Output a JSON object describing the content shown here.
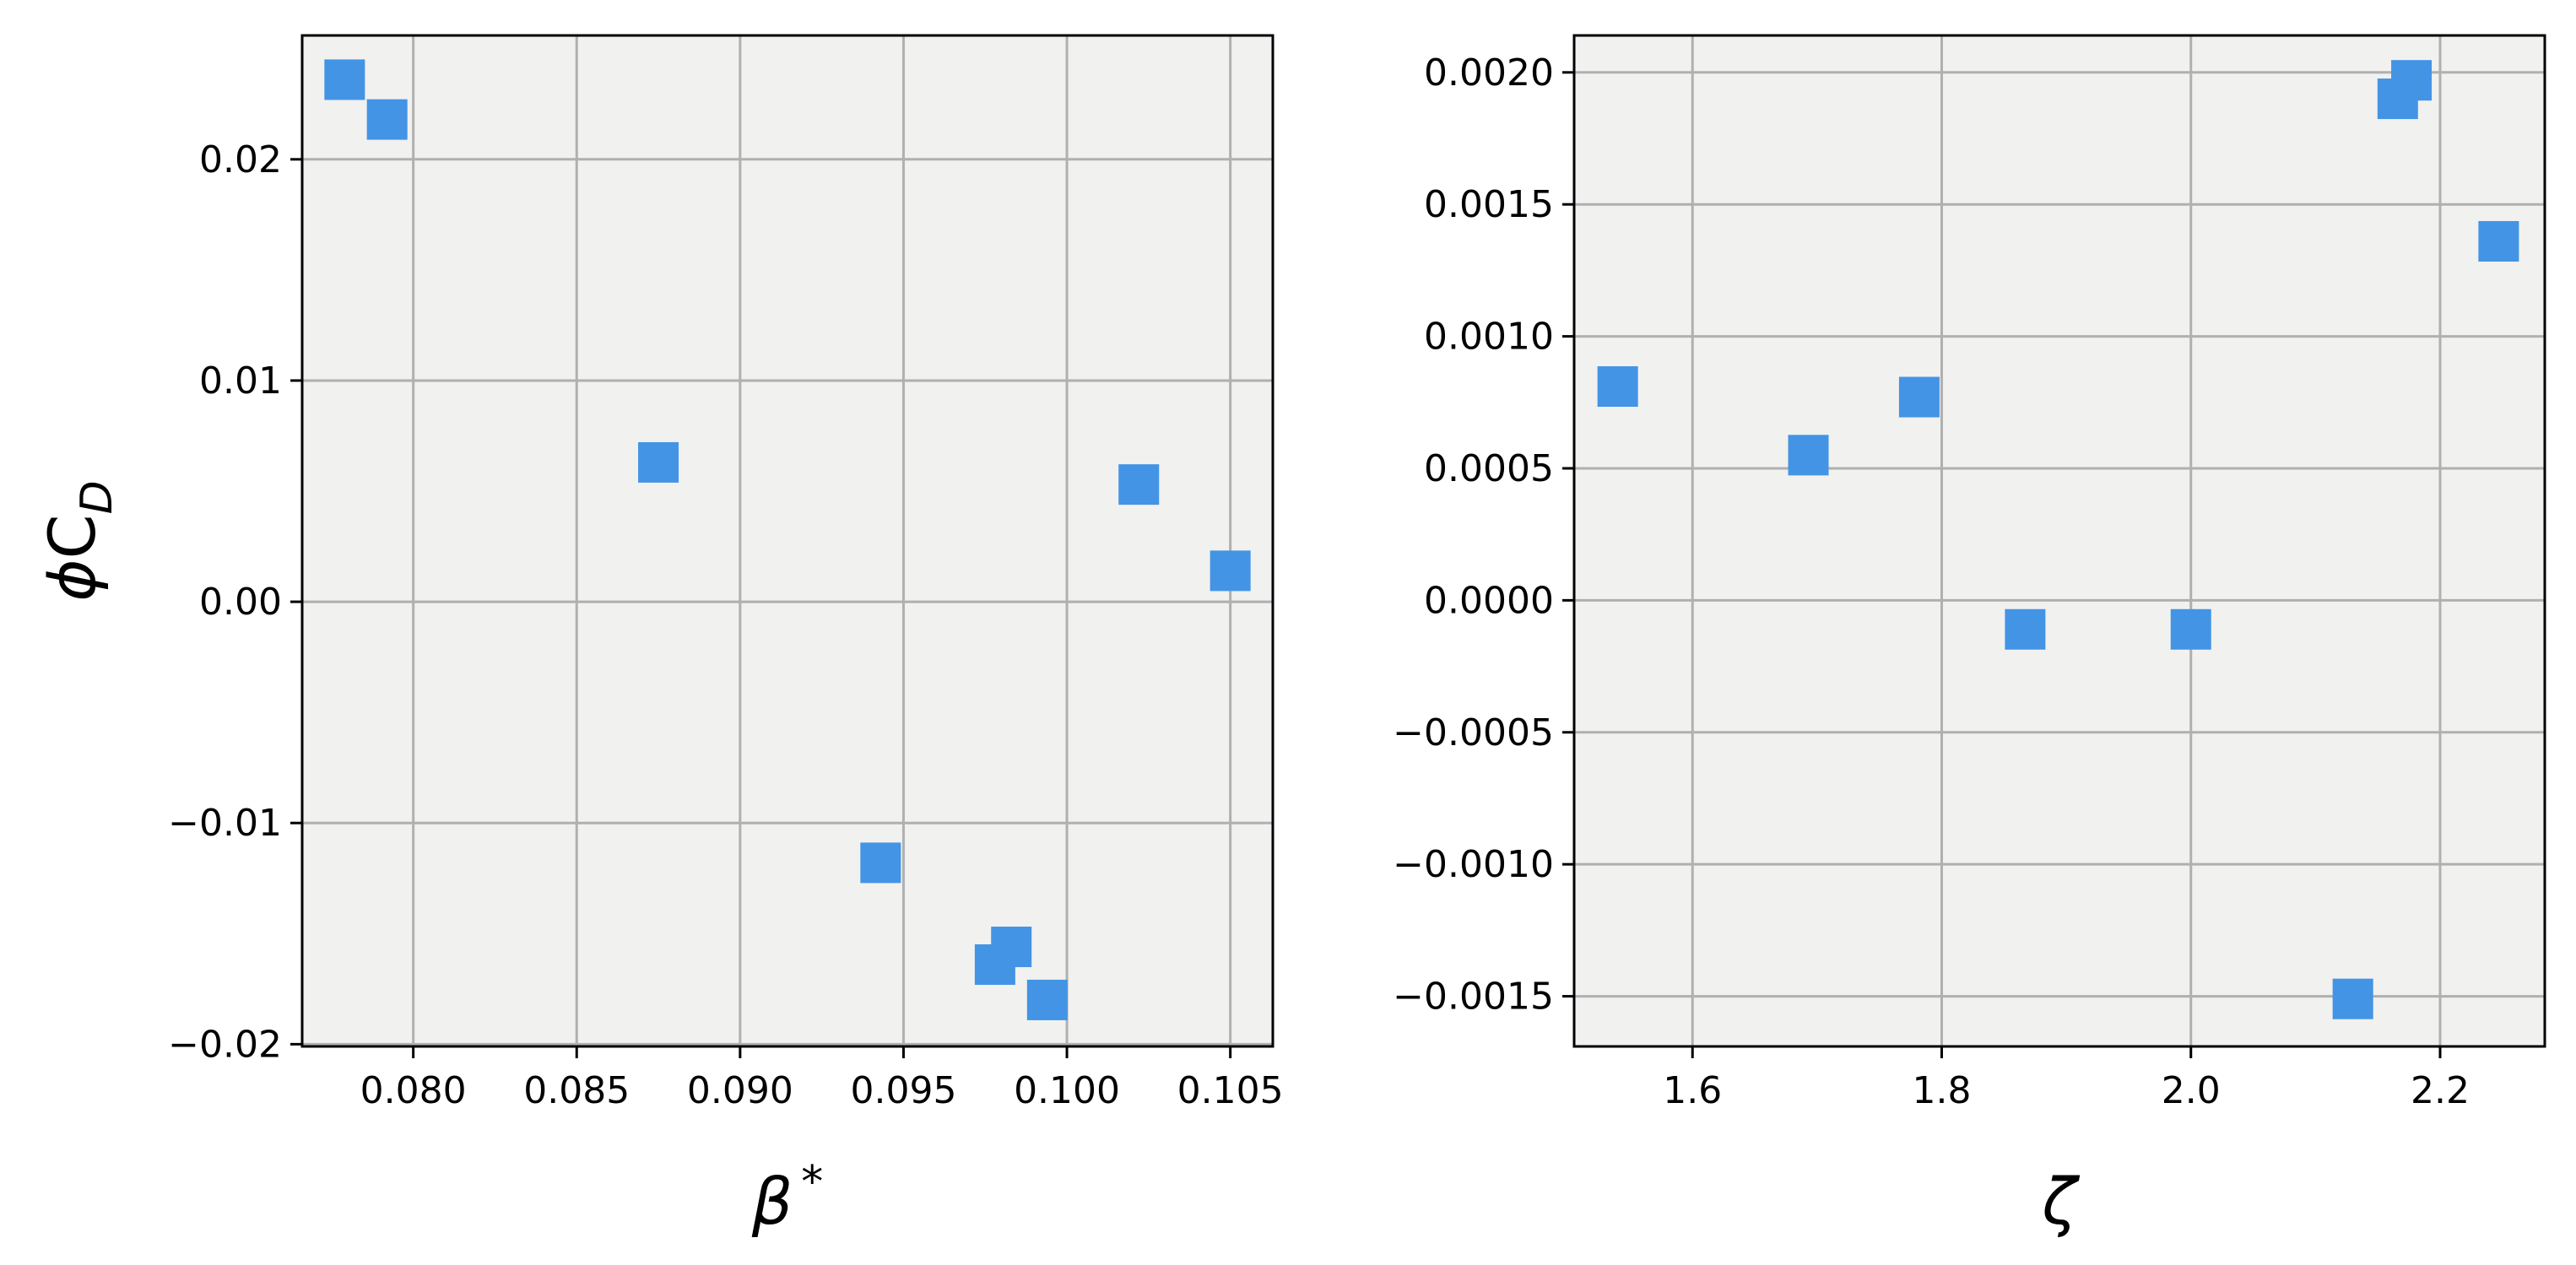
{
  "chart_data": [
    {
      "type": "scatter",
      "xlabel": "β*",
      "ylabel": "ϕC_D",
      "xlim": [
        0.0766,
        0.1063
      ],
      "ylim": [
        -0.0201,
        0.0256
      ],
      "grid": true,
      "plot_background": "#f1f1f0",
      "marker": "square",
      "color": "#4394e5",
      "x_ticks": [
        0.08,
        0.085,
        0.09,
        0.095,
        0.1,
        0.105
      ],
      "x_tick_labels": [
        "0.080",
        "0.085",
        "0.090",
        "0.095",
        "0.100",
        "0.105"
      ],
      "y_ticks": [
        -0.02,
        -0.01,
        0.0,
        0.01,
        0.02
      ],
      "y_tick_labels": [
        "−0.02",
        "−0.01",
        "0.00",
        "0.01",
        "0.02"
      ],
      "points": [
        {
          "x": 0.0779,
          "y": 0.0236
        },
        {
          "x": 0.0792,
          "y": 0.0218
        },
        {
          "x": 0.0875,
          "y": 0.0063
        },
        {
          "x": 0.0943,
          "y": -0.0118
        },
        {
          "x": 0.0978,
          "y": -0.0164
        },
        {
          "x": 0.0983,
          "y": -0.0156
        },
        {
          "x": 0.0994,
          "y": -0.018
        },
        {
          "x": 0.1022,
          "y": 0.0053
        },
        {
          "x": 0.105,
          "y": 0.0014
        }
      ]
    },
    {
      "type": "scatter",
      "xlabel": "ζ",
      "ylabel": "",
      "xlim": [
        1.505,
        2.284
      ],
      "ylim": [
        -0.00169,
        0.00214
      ],
      "grid": true,
      "plot_background": "#f1f1f0",
      "marker": "square",
      "color": "#4394e5",
      "x_ticks": [
        1.6,
        1.8,
        2.0,
        2.2
      ],
      "x_tick_labels": [
        "1.6",
        "1.8",
        "2.0",
        "2.2"
      ],
      "y_ticks": [
        -0.0015,
        -0.001,
        -0.0005,
        0.0,
        0.0005,
        0.001,
        0.0015,
        0.002
      ],
      "y_tick_labels": [
        "−0.0015",
        "−0.0010",
        "−0.0005",
        "0.0000",
        "0.0005",
        "0.0010",
        "0.0015",
        "0.0020"
      ],
      "points": [
        {
          "x": 1.54,
          "y": 0.00081
        },
        {
          "x": 1.693,
          "y": 0.00055
        },
        {
          "x": 1.782,
          "y": 0.00077
        },
        {
          "x": 1.867,
          "y": -0.00011
        },
        {
          "x": 2.0,
          "y": -0.00011
        },
        {
          "x": 2.13,
          "y": -0.00151
        },
        {
          "x": 2.166,
          "y": 0.0019
        },
        {
          "x": 2.177,
          "y": 0.00197
        },
        {
          "x": 2.247,
          "y": 0.00136
        }
      ]
    }
  ]
}
